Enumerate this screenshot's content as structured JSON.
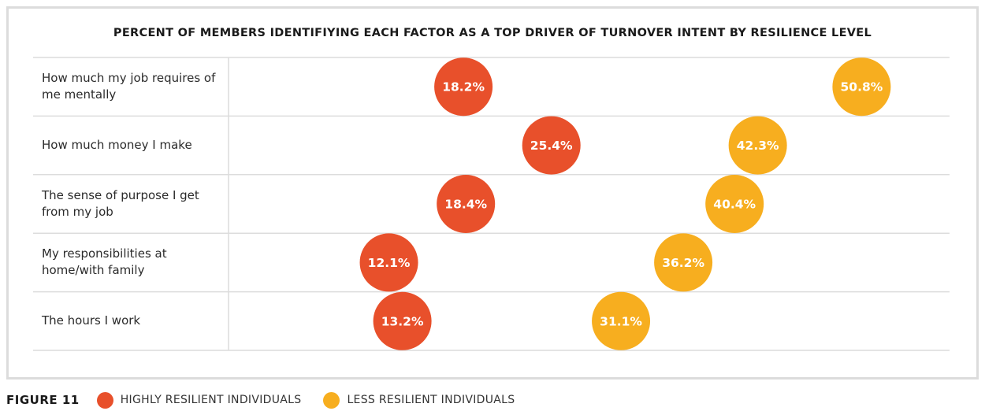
{
  "title": "PERCENT OF MEMBERS IDENTIFIYING EACH FACTOR AS A TOP DRIVER OF TURNOVER INTENT BY RESILIENCE LEVEL",
  "figure_label": "FIGURE 11",
  "colors": {
    "highly": "#e8502b",
    "less": "#f7ae1f",
    "grid": "#dcdcdc"
  },
  "chart_data": {
    "type": "scatter",
    "title": "PERCENT OF MEMBERS IDENTIFIYING EACH FACTOR AS A TOP DRIVER OF TURNOVER INTENT BY RESILIENCE LEVEL",
    "categories": [
      "How much my job requires of me mentally",
      "How much money I make",
      "The sense of purpose I get from my job",
      "My responsibilities at home/with family",
      "The hours I work"
    ],
    "series": [
      {
        "name": "HIGHLY RESILIENT INDIVIDUALS",
        "values": [
          18.2,
          25.4,
          18.4,
          12.1,
          13.2
        ],
        "labels": [
          "18.2%",
          "25.4%",
          "18.4%",
          "12.1%",
          "13.2%"
        ]
      },
      {
        "name": "LESS RESILIENT INDIVIDUALS",
        "values": [
          50.8,
          42.3,
          40.4,
          36.2,
          31.1
        ],
        "labels": [
          "50.8%",
          "42.3%",
          "40.4%",
          "36.2%",
          "31.1%"
        ]
      }
    ],
    "legend": "bottom-left",
    "grid": true
  }
}
